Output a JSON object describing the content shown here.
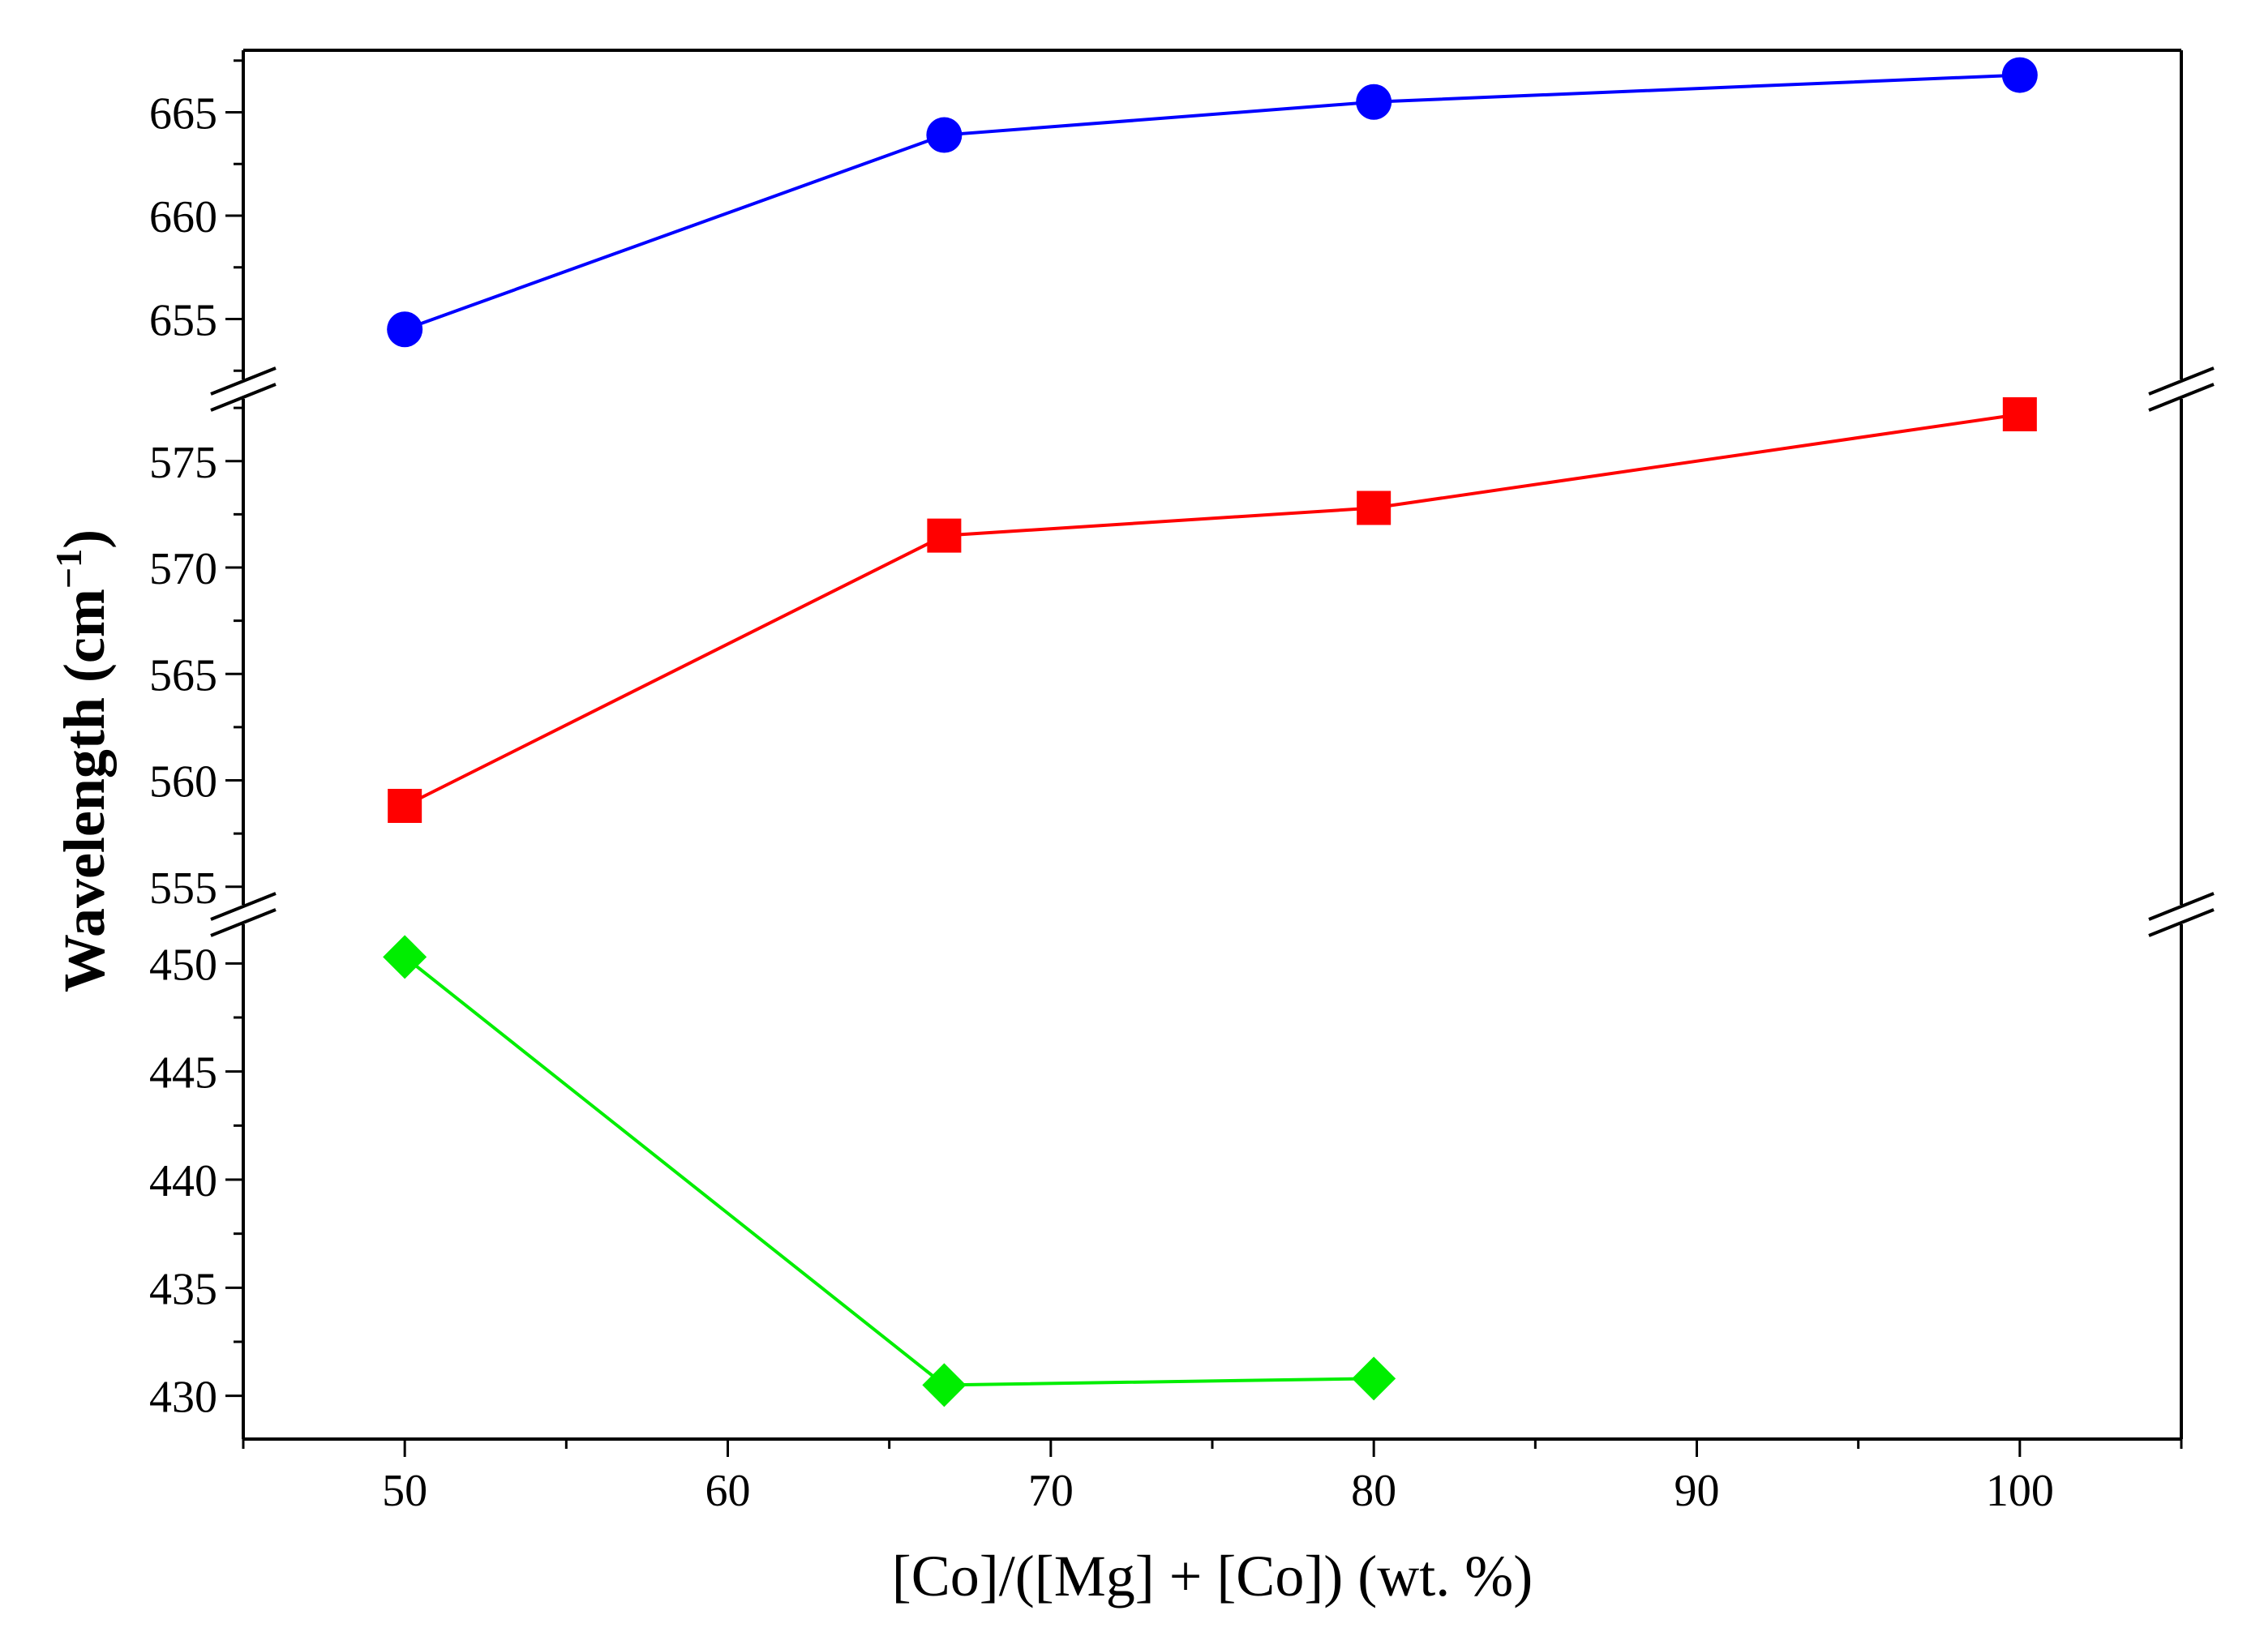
{
  "chart_data": {
    "type": "line",
    "title": "",
    "xlabel": "[Co]/([Mg] + [Co]) (wt. %)",
    "ylabel": {
      "base": "Wavelength (cm",
      "sup": "−1",
      "close": ")"
    },
    "xlim": [
      45,
      105
    ],
    "x_ticks": [
      50,
      60,
      70,
      80,
      90,
      100
    ],
    "x_tick_labels": [
      "50",
      "60",
      "70",
      "80",
      "90",
      "100"
    ],
    "y_broken_axis": true,
    "segments": [
      {
        "name": "upper",
        "ylim": [
          652,
          668
        ],
        "ticks": [
          655,
          660,
          665
        ],
        "tick_labels": [
          "655",
          "660",
          "665"
        ]
      },
      {
        "name": "middle",
        "ylim": [
          554,
          578
        ],
        "ticks": [
          555,
          560,
          565,
          570,
          575
        ],
        "tick_labels": [
          "555",
          "560",
          "565",
          "570",
          "575"
        ]
      },
      {
        "name": "lower",
        "ylim": [
          428,
          452
        ],
        "ticks": [
          430,
          435,
          440,
          445,
          450
        ],
        "tick_labels": [
          "430",
          "435",
          "440",
          "445",
          "450"
        ]
      }
    ],
    "series": [
      {
        "name": "blue-circles",
        "segment": "upper",
        "marker": "circle",
        "color": "#0000FF",
        "x": [
          50,
          66.7,
          80,
          100
        ],
        "y": [
          654.5,
          663.9,
          665.5,
          666.8
        ]
      },
      {
        "name": "red-squares",
        "segment": "middle",
        "marker": "square",
        "color": "#FF0000",
        "x": [
          50,
          66.7,
          80,
          100
        ],
        "y": [
          558.8,
          571.5,
          572.8,
          577.2
        ]
      },
      {
        "name": "green-diamonds",
        "segment": "lower",
        "marker": "diamond",
        "color": "#00EE00",
        "x": [
          50,
          66.7,
          80
        ],
        "y": [
          450.3,
          430.5,
          430.8
        ]
      }
    ]
  }
}
